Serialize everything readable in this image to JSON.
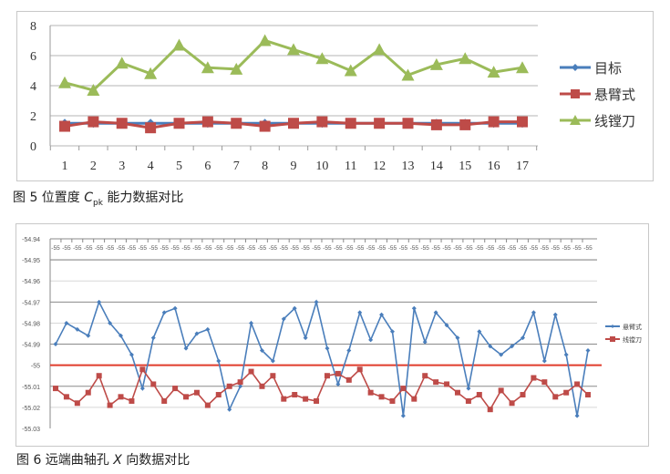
{
  "chart_data": [
    {
      "type": "line",
      "title": "",
      "caption_prefix": "图 5  位置度 ",
      "caption_symbol": "C",
      "caption_sub": "pk",
      "caption_suffix": " 能力数据对比",
      "xlabel": "",
      "ylabel": "",
      "ylim": [
        0,
        8
      ],
      "yticks": [
        "0",
        "2",
        "4",
        "6",
        "8"
      ],
      "categories": [
        "1",
        "2",
        "3",
        "4",
        "5",
        "6",
        "7",
        "8",
        "9",
        "10",
        "11",
        "12",
        "13",
        "14",
        "15",
        "16",
        "17"
      ],
      "grid": true,
      "legend": "right",
      "series": [
        {
          "name": "目标",
          "color": "#4a7ebb",
          "marker": "diamond",
          "values": [
            1.5,
            1.5,
            1.5,
            1.5,
            1.5,
            1.5,
            1.5,
            1.5,
            1.5,
            1.5,
            1.5,
            1.5,
            1.5,
            1.5,
            1.5,
            1.5,
            1.5
          ]
        },
        {
          "name": "悬臂式",
          "color": "#be4b48",
          "marker": "square",
          "values": [
            1.3,
            1.6,
            1.5,
            1.2,
            1.5,
            1.6,
            1.5,
            1.3,
            1.5,
            1.6,
            1.5,
            1.5,
            1.5,
            1.4,
            1.4,
            1.6,
            1.6
          ]
        },
        {
          "name": "线镗刀",
          "color": "#9bbb59",
          "marker": "triangle",
          "values": [
            4.2,
            3.7,
            5.5,
            4.8,
            6.7,
            5.2,
            5.1,
            7.0,
            6.4,
            5.8,
            5.0,
            6.4,
            4.7,
            5.4,
            5.8,
            4.9,
            5.2
          ]
        }
      ]
    },
    {
      "type": "line",
      "title": "",
      "caption_prefix": "图 6  远端曲轴孔 ",
      "caption_symbol": "X",
      "caption_suffix": " 向数据对比",
      "xlabel": "",
      "ylabel": "",
      "ylim": [
        -55.03,
        -54.94
      ],
      "yticks": [
        "-54.94",
        "-54.95",
        "-54.96",
        "-54.97",
        "-54.98",
        "-54.99",
        "-55",
        "-55.01",
        "-55.02",
        "-55.03"
      ],
      "x_tick_label": "-55",
      "x_count": 50,
      "reference_line": {
        "value": -55.0,
        "color": "#e03c2c"
      },
      "grid": true,
      "legend": "right",
      "series": [
        {
          "name": "悬臂式",
          "color": "#4a7ebb",
          "marker": "diamond",
          "values": [
            -54.99,
            -54.98,
            -54.983,
            -54.986,
            -54.97,
            -54.98,
            -54.986,
            -54.995,
            -55.011,
            -54.987,
            -54.975,
            -54.973,
            -54.992,
            -54.985,
            -54.983,
            -54.998,
            -55.021,
            -55.01,
            -54.98,
            -54.993,
            -54.998,
            -54.978,
            -54.973,
            -54.987,
            -54.97,
            -54.992,
            -55.009,
            -54.993,
            -54.975,
            -54.988,
            -54.976,
            -54.984,
            -55.024,
            -54.973,
            -54.989,
            -54.975,
            -54.981,
            -54.987,
            -55.011,
            -54.984,
            -54.991,
            -54.995,
            -54.991,
            -54.987,
            -54.975,
            -54.998,
            -54.976,
            -54.995,
            -55.024,
            -54.993
          ]
        },
        {
          "name": "线镗刀",
          "color": "#be4b48",
          "marker": "square",
          "values": [
            -55.011,
            -55.015,
            -55.018,
            -55.013,
            -55.005,
            -55.019,
            -55.015,
            -55.017,
            -55.002,
            -55.009,
            -55.017,
            -55.011,
            -55.015,
            -55.013,
            -55.019,
            -55.014,
            -55.01,
            -55.008,
            -55.003,
            -55.01,
            -55.005,
            -55.016,
            -55.014,
            -55.016,
            -55.017,
            -55.005,
            -55.004,
            -55.007,
            -55.002,
            -55.013,
            -55.015,
            -55.017,
            -55.011,
            -55.016,
            -55.005,
            -55.008,
            -55.009,
            -55.013,
            -55.017,
            -55.014,
            -55.021,
            -55.012,
            -55.018,
            -55.014,
            -55.006,
            -55.008,
            -55.015,
            -55.013,
            -55.009,
            -55.014
          ]
        }
      ]
    }
  ]
}
